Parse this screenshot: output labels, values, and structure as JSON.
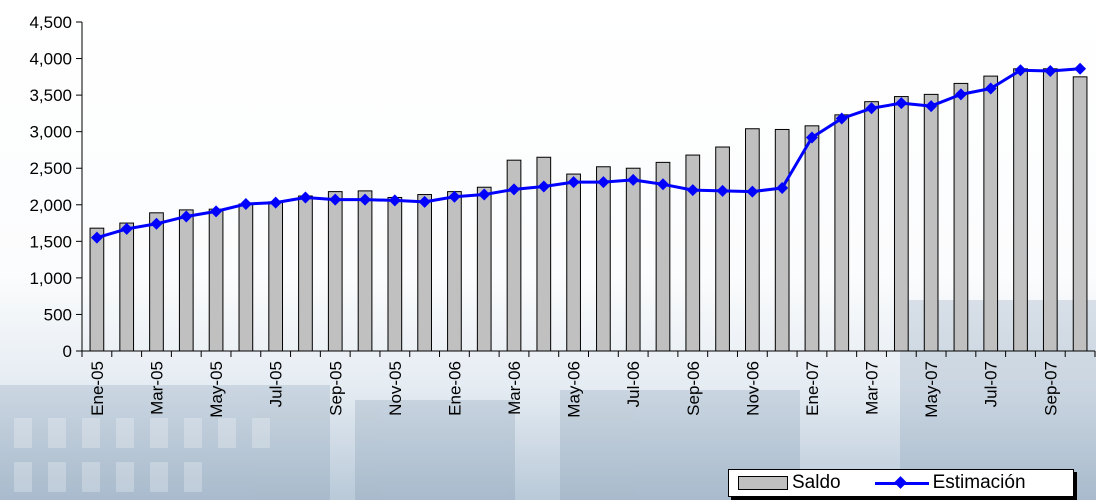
{
  "chart_data": {
    "type": "bar",
    "title": "",
    "xlabel": "",
    "ylabel": "",
    "ylim": [
      0,
      4500
    ],
    "ytick_labels": [
      "0",
      "500",
      "1,000",
      "1,500",
      "2,000",
      "2,500",
      "3,000",
      "3,500",
      "4,000",
      "4,500"
    ],
    "yticks": [
      0,
      500,
      1000,
      1500,
      2000,
      2500,
      3000,
      3500,
      4000,
      4500
    ],
    "grid": false,
    "legend_position": "bottom-right",
    "categories": [
      "Ene-05",
      "Feb-05",
      "Mar-05",
      "Abr-05",
      "May-05",
      "Jun-05",
      "Jul-05",
      "Ago-05",
      "Sep-05",
      "Oct-05",
      "Nov-05",
      "Dic-05",
      "Ene-06",
      "Feb-06",
      "Mar-06",
      "Abr-06",
      "May-06",
      "Jun-06",
      "Jul-06",
      "Ago-06",
      "Sep-06",
      "Oct-06",
      "Nov-06",
      "Dic-06",
      "Ene-07",
      "Feb-07",
      "Mar-07",
      "Abr-07",
      "May-07",
      "Jun-07",
      "Jul-07",
      "Ago-07",
      "Sep-07",
      "Oct-07"
    ],
    "x_tick_labels": [
      "Ene-05",
      "",
      "Mar-05",
      "",
      "May-05",
      "",
      "Jul-05",
      "",
      "Sep-05",
      "",
      "Nov-05",
      "",
      "Ene-06",
      "",
      "Mar-06",
      "",
      "May-06",
      "",
      "Jul-06",
      "",
      "Sep-06",
      "",
      "Nov-06",
      "",
      "Ene-07",
      "",
      "Mar-07",
      "",
      "May-07",
      "",
      "Jul-07",
      "",
      "Sep-07",
      ""
    ],
    "series": [
      {
        "name": "Saldo",
        "kind": "bar",
        "color": "#c0c0c0",
        "values": [
          1680,
          1750,
          1890,
          1930,
          1940,
          2010,
          2040,
          2120,
          2180,
          2190,
          2100,
          2140,
          2180,
          2240,
          2610,
          2650,
          2420,
          2520,
          2500,
          2580,
          2680,
          2790,
          3040,
          3030,
          3080,
          3230,
          3410,
          3480,
          3510,
          3660,
          3760,
          3860,
          3860,
          3750
        ]
      },
      {
        "name": "Estimación",
        "kind": "line",
        "color": "#0000ff",
        "values": [
          1550,
          1670,
          1740,
          1840,
          1910,
          2010,
          2030,
          2100,
          2070,
          2070,
          2060,
          2040,
          2110,
          2140,
          2210,
          2250,
          2310,
          2310,
          2340,
          2280,
          2200,
          2190,
          2180,
          2230,
          2920,
          3180,
          3320,
          3390,
          3350,
          3510,
          3590,
          3840,
          3830,
          3860
        ]
      }
    ]
  }
}
